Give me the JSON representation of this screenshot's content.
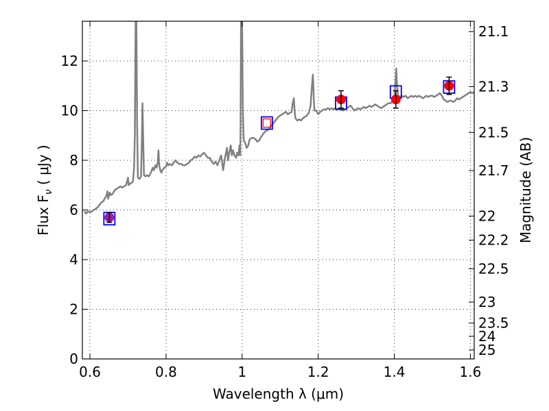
{
  "chart_data": {
    "type": "scatter",
    "xlabel": "Wavelength  λ (μm)",
    "ylabel": "Flux  F",
    "ylabel_sub": "ν",
    "ylabel_unit": "  ( μJy )",
    "y2label": "Magnitude (AB)",
    "xlim": [
      0.58,
      1.61
    ],
    "ylim": [
      0,
      13.6
    ],
    "grid": true,
    "x_ticks": [
      0.6,
      0.8,
      1.0,
      1.2,
      1.4,
      1.6
    ],
    "x_tick_labels": [
      "0.6",
      "0.8",
      "1",
      "1.2",
      "1.4",
      "1.6"
    ],
    "y_ticks": [
      0,
      2,
      4,
      6,
      8,
      10,
      12
    ],
    "y_tick_labels": [
      "0",
      "2",
      "4",
      "6",
      "8",
      "10",
      "12"
    ],
    "mag_ticks": [
      {
        "label": "21.1",
        "value": 21.1
      },
      {
        "label": "21.3",
        "value": 21.3
      },
      {
        "label": "21.5",
        "value": 21.5
      },
      {
        "label": "21.7",
        "value": 21.7
      },
      {
        "label": "22",
        "value": 22.0
      },
      {
        "label": "22.2",
        "value": 22.2
      },
      {
        "label": "22.5",
        "value": 22.5
      },
      {
        "label": "23",
        "value": 23.0
      },
      {
        "label": "23.5",
        "value": 23.5
      },
      {
        "label": "24",
        "value": 24.0
      },
      {
        "label": "25",
        "value": 25.0
      }
    ],
    "spectrum": {
      "color": "#808080",
      "points": [
        [
          0.585,
          5.95
        ],
        [
          0.59,
          5.85
        ],
        [
          0.595,
          5.95
        ],
        [
          0.6,
          5.9
        ],
        [
          0.605,
          5.95
        ],
        [
          0.61,
          6.0
        ],
        [
          0.615,
          6.05
        ],
        [
          0.62,
          6.1
        ],
        [
          0.625,
          6.2
        ],
        [
          0.63,
          6.3
        ],
        [
          0.635,
          6.35
        ],
        [
          0.64,
          6.5
        ],
        [
          0.643,
          6.55
        ],
        [
          0.646,
          6.75
        ],
        [
          0.648,
          6.45
        ],
        [
          0.652,
          6.7
        ],
        [
          0.655,
          6.6
        ],
        [
          0.66,
          6.65
        ],
        [
          0.665,
          6.8
        ],
        [
          0.67,
          6.85
        ],
        [
          0.675,
          6.9
        ],
        [
          0.68,
          6.95
        ],
        [
          0.685,
          6.9
        ],
        [
          0.69,
          6.95
        ],
        [
          0.695,
          7.0
        ],
        [
          0.7,
          7.3
        ],
        [
          0.702,
          7.0
        ],
        [
          0.705,
          7.05
        ],
        [
          0.71,
          7.1
        ],
        [
          0.713,
          7.15
        ],
        [
          0.716,
          7.7
        ],
        [
          0.718,
          9.0
        ],
        [
          0.72,
          13.6
        ],
        [
          0.722,
          13.6
        ],
        [
          0.724,
          9.5
        ],
        [
          0.726,
          7.3
        ],
        [
          0.73,
          7.25
        ],
        [
          0.734,
          7.35
        ],
        [
          0.736,
          8.5
        ],
        [
          0.738,
          10.3
        ],
        [
          0.74,
          8.8
        ],
        [
          0.742,
          7.4
        ],
        [
          0.746,
          7.35
        ],
        [
          0.75,
          7.4
        ],
        [
          0.755,
          7.35
        ],
        [
          0.76,
          7.5
        ],
        [
          0.765,
          7.7
        ],
        [
          0.768,
          7.6
        ],
        [
          0.772,
          7.8
        ],
        [
          0.775,
          7.7
        ],
        [
          0.778,
          7.9
        ],
        [
          0.78,
          8.4
        ],
        [
          0.782,
          7.8
        ],
        [
          0.785,
          7.6
        ],
        [
          0.788,
          7.5
        ],
        [
          0.79,
          7.6
        ],
        [
          0.795,
          7.7
        ],
        [
          0.8,
          7.75
        ],
        [
          0.803,
          7.9
        ],
        [
          0.806,
          7.8
        ],
        [
          0.81,
          7.85
        ],
        [
          0.815,
          7.8
        ],
        [
          0.82,
          7.9
        ],
        [
          0.825,
          8.0
        ],
        [
          0.83,
          7.9
        ],
        [
          0.835,
          7.85
        ],
        [
          0.84,
          7.85
        ],
        [
          0.845,
          7.8
        ],
        [
          0.85,
          7.8
        ],
        [
          0.855,
          7.85
        ],
        [
          0.86,
          7.9
        ],
        [
          0.865,
          8.0
        ],
        [
          0.87,
          8.05
        ],
        [
          0.875,
          8.15
        ],
        [
          0.88,
          8.1
        ],
        [
          0.885,
          8.2
        ],
        [
          0.89,
          8.15
        ],
        [
          0.895,
          8.25
        ],
        [
          0.9,
          8.3
        ],
        [
          0.905,
          8.2
        ],
        [
          0.91,
          8.1
        ],
        [
          0.915,
          8.1
        ],
        [
          0.92,
          7.95
        ],
        [
          0.925,
          7.85
        ],
        [
          0.93,
          7.95
        ],
        [
          0.935,
          7.8
        ],
        [
          0.94,
          8.0
        ],
        [
          0.945,
          8.2
        ],
        [
          0.95,
          7.6
        ],
        [
          0.955,
          8.1
        ],
        [
          0.96,
          8.5
        ],
        [
          0.963,
          8.0
        ],
        [
          0.966,
          8.3
        ],
        [
          0.97,
          8.6
        ],
        [
          0.973,
          8.2
        ],
        [
          0.976,
          8.4
        ],
        [
          0.98,
          8.2
        ],
        [
          0.984,
          8.1
        ],
        [
          0.987,
          8.3
        ],
        [
          0.99,
          8.2
        ],
        [
          0.993,
          8.6
        ],
        [
          0.995,
          8.2
        ],
        [
          0.996,
          9.5
        ],
        [
          0.997,
          13.6
        ],
        [
          1.0,
          13.6
        ],
        [
          1.002,
          10.0
        ],
        [
          1.004,
          8.8
        ],
        [
          1.008,
          8.7
        ],
        [
          1.012,
          8.5
        ],
        [
          1.016,
          8.6
        ],
        [
          1.02,
          8.85
        ],
        [
          1.025,
          8.9
        ],
        [
          1.03,
          8.9
        ],
        [
          1.035,
          8.85
        ],
        [
          1.04,
          8.75
        ],
        [
          1.045,
          8.8
        ],
        [
          1.05,
          8.95
        ],
        [
          1.055,
          9.05
        ],
        [
          1.06,
          9.15
        ],
        [
          1.065,
          9.2
        ],
        [
          1.07,
          9.25
        ],
        [
          1.075,
          9.35
        ],
        [
          1.08,
          9.45
        ],
        [
          1.085,
          9.55
        ],
        [
          1.09,
          9.65
        ],
        [
          1.095,
          9.75
        ],
        [
          1.1,
          9.8
        ],
        [
          1.105,
          9.85
        ],
        [
          1.11,
          9.9
        ],
        [
          1.115,
          9.95
        ],
        [
          1.12,
          9.85
        ],
        [
          1.125,
          9.9
        ],
        [
          1.13,
          9.95
        ],
        [
          1.133,
          10.3
        ],
        [
          1.136,
          10.5
        ],
        [
          1.138,
          10.0
        ],
        [
          1.14,
          9.7
        ],
        [
          1.145,
          9.6
        ],
        [
          1.15,
          9.65
        ],
        [
          1.155,
          9.6
        ],
        [
          1.16,
          9.7
        ],
        [
          1.165,
          9.75
        ],
        [
          1.17,
          9.8
        ],
        [
          1.175,
          9.9
        ],
        [
          1.18,
          10.2
        ],
        [
          1.183,
          10.9
        ],
        [
          1.186,
          11.45
        ],
        [
          1.188,
          10.6
        ],
        [
          1.19,
          10.0
        ],
        [
          1.195,
          10.0
        ],
        [
          1.2,
          9.85
        ],
        [
          1.205,
          9.95
        ],
        [
          1.21,
          10.0
        ],
        [
          1.215,
          10.05
        ],
        [
          1.22,
          10.05
        ],
        [
          1.225,
          10.1
        ],
        [
          1.23,
          10.05
        ],
        [
          1.235,
          10.1
        ],
        [
          1.24,
          10.05
        ],
        [
          1.245,
          10.1
        ],
        [
          1.25,
          10.05
        ],
        [
          1.255,
          10.1
        ],
        [
          1.26,
          10.05
        ],
        [
          1.265,
          10.0
        ],
        [
          1.27,
          10.05
        ],
        [
          1.275,
          10.1
        ],
        [
          1.28,
          10.15
        ],
        [
          1.285,
          10.2
        ],
        [
          1.29,
          10.1
        ],
        [
          1.295,
          10.0
        ],
        [
          1.3,
          10.05
        ],
        [
          1.305,
          10.1
        ],
        [
          1.31,
          10.05
        ],
        [
          1.315,
          10.1
        ],
        [
          1.32,
          10.15
        ],
        [
          1.325,
          10.1
        ],
        [
          1.33,
          10.15
        ],
        [
          1.335,
          10.2
        ],
        [
          1.34,
          10.15
        ],
        [
          1.345,
          10.2
        ],
        [
          1.35,
          10.25
        ],
        [
          1.355,
          10.2
        ],
        [
          1.36,
          10.15
        ],
        [
          1.365,
          10.1
        ],
        [
          1.37,
          10.15
        ],
        [
          1.375,
          10.2
        ],
        [
          1.38,
          10.25
        ],
        [
          1.385,
          10.3
        ],
        [
          1.39,
          10.3
        ],
        [
          1.395,
          10.35
        ],
        [
          1.4,
          10.6
        ],
        [
          1.403,
          11.1
        ],
        [
          1.405,
          11.7
        ],
        [
          1.407,
          11.0
        ],
        [
          1.41,
          10.6
        ],
        [
          1.415,
          10.55
        ],
        [
          1.42,
          10.6
        ],
        [
          1.425,
          10.55
        ],
        [
          1.43,
          10.6
        ],
        [
          1.435,
          10.5
        ],
        [
          1.44,
          10.55
        ],
        [
          1.445,
          10.6
        ],
        [
          1.45,
          10.55
        ],
        [
          1.455,
          10.6
        ],
        [
          1.46,
          10.55
        ],
        [
          1.465,
          10.6
        ],
        [
          1.47,
          10.55
        ],
        [
          1.475,
          10.5
        ],
        [
          1.48,
          10.55
        ],
        [
          1.485,
          10.6
        ],
        [
          1.49,
          10.55
        ],
        [
          1.495,
          10.6
        ],
        [
          1.5,
          10.6
        ],
        [
          1.505,
          10.55
        ],
        [
          1.51,
          10.6
        ],
        [
          1.515,
          10.65
        ],
        [
          1.52,
          10.7
        ],
        [
          1.525,
          10.6
        ],
        [
          1.53,
          10.45
        ],
        [
          1.535,
          10.4
        ],
        [
          1.54,
          10.35
        ],
        [
          1.545,
          10.4
        ],
        [
          1.55,
          10.4
        ],
        [
          1.555,
          10.35
        ],
        [
          1.56,
          10.4
        ],
        [
          1.565,
          10.5
        ],
        [
          1.57,
          10.45
        ],
        [
          1.575,
          10.5
        ],
        [
          1.58,
          10.55
        ],
        [
          1.585,
          10.6
        ],
        [
          1.59,
          10.65
        ],
        [
          1.595,
          10.7
        ],
        [
          1.6,
          10.75
        ],
        [
          1.605,
          10.7
        ],
        [
          1.61,
          10.75
        ]
      ]
    },
    "model_points": [
      {
        "x": 0.651,
        "y": 5.65,
        "edge": "#0000ff"
      },
      {
        "x": 1.065,
        "y": 9.5,
        "edge": "#0000ff",
        "inner_edge": "#ff0000"
      },
      {
        "x": 1.26,
        "y": 10.3,
        "edge": "#0000ff"
      },
      {
        "x": 1.404,
        "y": 10.75,
        "edge": "#0000ff"
      },
      {
        "x": 1.544,
        "y": 10.95,
        "edge": "#0000ff"
      }
    ],
    "observed_points": [
      {
        "x": 0.651,
        "y": 5.7,
        "yerr": 0.2,
        "color": "#9b1e9b"
      },
      {
        "x": 1.26,
        "y": 10.45,
        "yerr": 0.35,
        "color": "#ff0000"
      },
      {
        "x": 1.404,
        "y": 10.45,
        "yerr": 0.35,
        "color": "#ff0000"
      },
      {
        "x": 1.544,
        "y": 11.0,
        "yerr": 0.35,
        "color": "#ff0000"
      }
    ]
  }
}
